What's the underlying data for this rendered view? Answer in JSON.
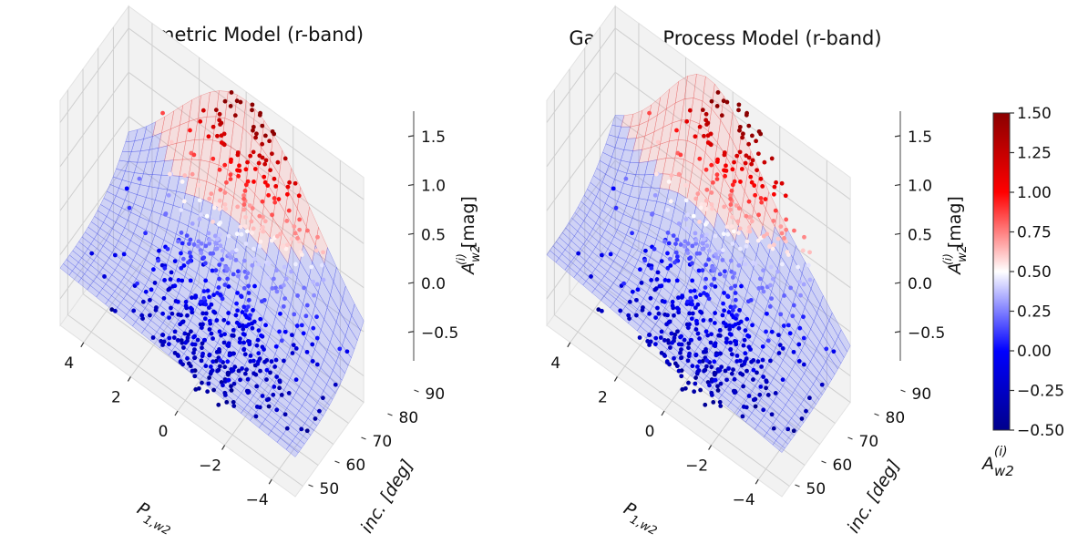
{
  "chart_data": [
    {
      "type": "surface3d-scatter",
      "title": "Parametric Model (r-band)",
      "xlabel": "P_{1,w2}",
      "xlabel_main": "P",
      "xlabel_sub": "1,w2",
      "ylabel": "inc. [deg]",
      "zlabel": "A_{w2}^{(i)} [mag]",
      "zlabel_main": "A",
      "zlabel_sub": "w2",
      "zlabel_sup": "(i)",
      "zlabel_unit": "[mag]",
      "x_ticks": [
        "−4",
        "−2",
        "0",
        "2",
        "4"
      ],
      "y_ticks": [
        "50",
        "60",
        "70",
        "80",
        "90"
      ],
      "z_ticks": [
        "−0.5",
        "0.0",
        "0.5",
        "1.0",
        "1.5"
      ],
      "xlim": [
        -5,
        5
      ],
      "ylim": [
        45,
        90
      ],
      "zlim": [
        -0.8,
        1.75
      ],
      "model": "parametric"
    },
    {
      "type": "surface3d-scatter",
      "title": "Gaussian Process Model (r-band)",
      "xlabel": "P_{1,w2}",
      "xlabel_main": "P",
      "xlabel_sub": "1,w2",
      "ylabel": "inc. [deg]",
      "zlabel": "A_{w2}^{(i)} [mag]",
      "zlabel_main": "A",
      "zlabel_sub": "w2",
      "zlabel_sup": "(i)",
      "zlabel_unit": "[mag]",
      "x_ticks": [
        "−4",
        "−2",
        "0",
        "2",
        "4"
      ],
      "y_ticks": [
        "50",
        "60",
        "70",
        "80",
        "90"
      ],
      "z_ticks": [
        "−0.5",
        "0.0",
        "0.5",
        "1.0",
        "1.5"
      ],
      "xlim": [
        -5,
        5
      ],
      "ylim": [
        45,
        90
      ],
      "zlim": [
        -0.8,
        1.75
      ],
      "model": "gp"
    }
  ],
  "colorbar": {
    "min": -0.5,
    "max": 1.5,
    "ticks": [
      "1.50",
      "1.25",
      "1.00",
      "0.75",
      "0.50",
      "0.25",
      "0.00",
      "−0.25",
      "−0.50"
    ],
    "tick_values": [
      1.5,
      1.25,
      1.0,
      0.75,
      0.5,
      0.25,
      0.0,
      -0.25,
      -0.5
    ],
    "label_main": "A",
    "label_sub": "w2",
    "label_sup": "(i)",
    "colors": [
      "#00008b",
      "#0000ff",
      "#ffffff",
      "#ff0000",
      "#8b0000"
    ]
  }
}
